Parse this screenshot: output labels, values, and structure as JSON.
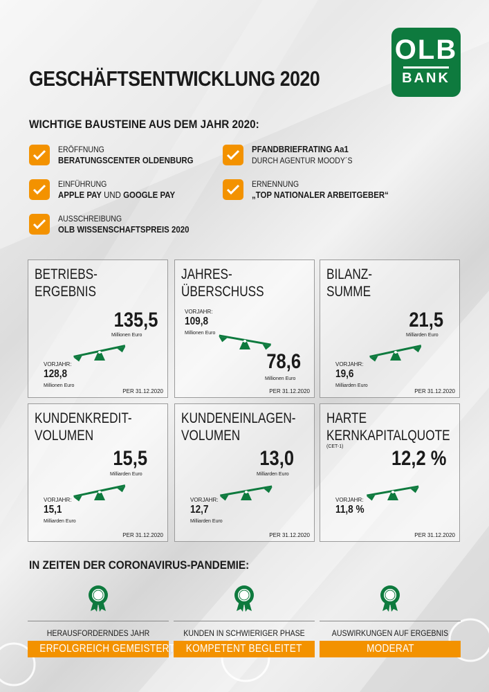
{
  "logo": {
    "line1": "OLB",
    "line2": "BANK"
  },
  "title": "GESCHÄFTSENTWICKLUNG 2020",
  "subhead": "WICHTIGE BAUSTEINE AUS DEM JAHR 2020:",
  "milestones": [
    {
      "label": "ERÖFFNUNG",
      "value": "BERATUNGSCENTER OLDENBURG"
    },
    {
      "label": "PFANDBRIEFRATING Aa1",
      "value": "DURCH AGENTUR MOODY´S"
    },
    {
      "label": "EINFÜHRUNG",
      "value_a": "APPLE PAY",
      "value_mid": " UND ",
      "value_b": "GOOGLE PAY"
    },
    {
      "label": "ERNENNUNG",
      "value": "„TOP NATIONALER ARBEITGEBER“"
    },
    {
      "label": "AUSSCHREIBUNG",
      "value": "OLB WISSENSCHAFTSPREIS 2020"
    }
  ],
  "per_date": "PER 31.12.2020",
  "prev_label": "VORJAHR:",
  "cards": [
    {
      "title": "BETRIEBS-\nERGEBNIS",
      "value": "135,5",
      "unit": "Millionen Euro",
      "prev": "128,8",
      "prev_unit": "Millionen Euro"
    },
    {
      "title": "JAHRES-\nÜBERSCHUSS",
      "value": "78,6",
      "unit": "Millionen Euro",
      "prev": "109,8",
      "prev_unit": "Millionen Euro"
    },
    {
      "title": "BILANZ-\nSUMME",
      "value": "21,5",
      "unit": "Milliarden Euro",
      "prev": "19,6",
      "prev_unit": "Milliarden Euro"
    },
    {
      "title": "KUNDENKREDIT-\nVOLUMEN",
      "value": "15,5",
      "unit": "Milliarden Euro",
      "prev": "15,1",
      "prev_unit": "Milliarden Euro"
    },
    {
      "title": "KUNDENEINLAGEN-\nVOLUMEN",
      "value": "13,0",
      "unit": "Milliarden Euro",
      "prev": "12,7",
      "prev_unit": "Milliarden Euro"
    },
    {
      "title": "HARTE\nKERNKAPITALQUOTE",
      "subtitle": "(CET-1)",
      "value": "12,2 %",
      "prev": "11,8 %"
    }
  ],
  "section2": "IN ZEITEN DER CORONAVIRUS-PANDEMIE:",
  "pandemic": [
    {
      "label": "HERAUSFORDERNDES JAHR",
      "highlight": "ERFOLGREICH GEMEISTERT"
    },
    {
      "label": "KUNDEN IN SCHWIERIGER PHASE",
      "highlight": "KOMPETENT BEGLEITET"
    },
    {
      "label": "AUSWIRKUNGEN AUF ERGEBNIS",
      "highlight": "MODERAT"
    }
  ],
  "colors": {
    "green": "#0e7a3e",
    "orange": "#f39200"
  },
  "icons": {
    "check": "checkmark-icon",
    "scale": "balance-scale-icon",
    "medal": "award-rosette-icon"
  }
}
